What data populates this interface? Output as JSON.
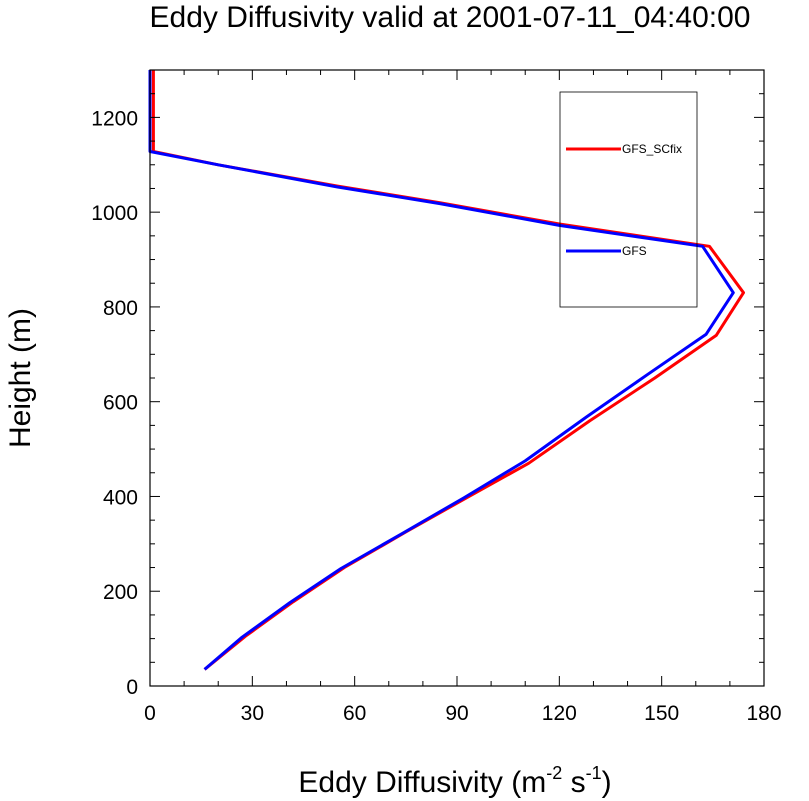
{
  "chart_data": {
    "type": "line",
    "title": "Eddy Diffusivity valid at 2001-07-11_04:40:00",
    "xlabel": {
      "base": "Eddy Diffusivity (m",
      "sup1": "-2",
      "mid": " s",
      "sup2": "-1",
      "end": ")"
    },
    "ylabel": "Height (m)",
    "xlim": [
      0,
      180
    ],
    "ylim": [
      0,
      1300
    ],
    "xticks": [
      0,
      30,
      60,
      90,
      120,
      150,
      180
    ],
    "yticks": [
      0,
      200,
      400,
      600,
      800,
      1000,
      1200
    ],
    "x_minor_step": 10,
    "y_minor_step": 50,
    "legend": {
      "position": "top-right"
    },
    "series": [
      {
        "name": "GFS_SCfix",
        "color": "#ff0000",
        "points": [
          [
            16,
            35
          ],
          [
            28,
            105
          ],
          [
            42,
            178
          ],
          [
            57,
            250
          ],
          [
            75,
            325
          ],
          [
            93,
            398
          ],
          [
            111,
            470
          ],
          [
            129,
            560
          ],
          [
            148,
            650
          ],
          [
            166,
            740
          ],
          [
            174,
            830
          ],
          [
            164,
            928
          ],
          [
            120,
            975
          ],
          [
            85,
            1020
          ],
          [
            55,
            1055
          ],
          [
            20,
            1100
          ],
          [
            1,
            1128
          ],
          [
            1,
            1300
          ]
        ]
      },
      {
        "name": "GFS",
        "color": "#0000ff",
        "points": [
          [
            16,
            35
          ],
          [
            27,
            103
          ],
          [
            41,
            176
          ],
          [
            56,
            248
          ],
          [
            74,
            322
          ],
          [
            92,
            397
          ],
          [
            110,
            475
          ],
          [
            128,
            568
          ],
          [
            146,
            658
          ],
          [
            163,
            742
          ],
          [
            171,
            830
          ],
          [
            162,
            928
          ],
          [
            120,
            972
          ],
          [
            85,
            1018
          ],
          [
            55,
            1053
          ],
          [
            20,
            1100
          ],
          [
            0,
            1128
          ],
          [
            0,
            1300
          ]
        ]
      }
    ]
  }
}
